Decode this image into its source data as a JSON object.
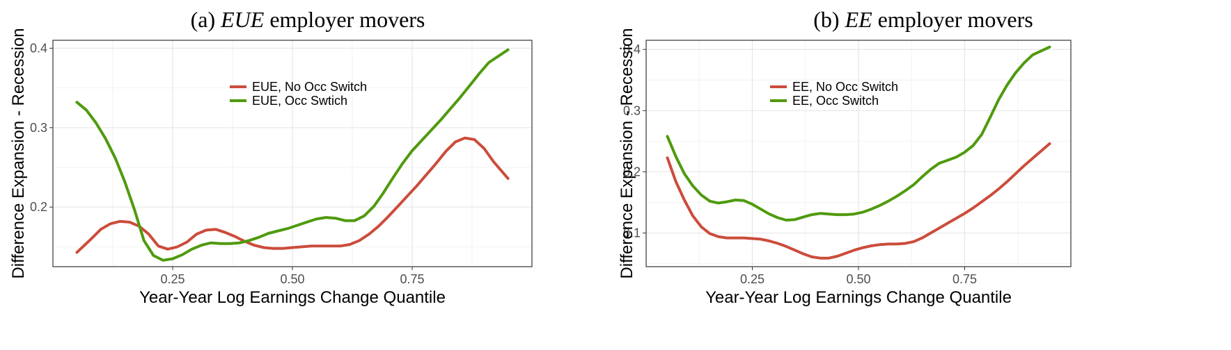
{
  "chart_data": [
    {
      "type": "line",
      "title_prefix": "(a)",
      "title_math": "EUE",
      "title_suffix": "employer movers",
      "xlabel": "Year-Year Log Earnings Change Quantile",
      "ylabel": "Difference Expansion - Recession",
      "xlim": [
        0.0,
        1.0
      ],
      "ylim": [
        0.125,
        0.41
      ],
      "xticks": [
        0.25,
        0.5,
        0.75
      ],
      "xtick_labels": [
        "0.25",
        "0.50",
        "0.75"
      ],
      "yticks": [
        0.2,
        0.3,
        0.4
      ],
      "ytick_labels": [
        "0.2",
        "0.3",
        "0.4"
      ],
      "grid": true,
      "legend_position": "top-center",
      "series": [
        {
          "name": "EUE, No Occ Switch",
          "color": "#cc4c3b",
          "x": [
            0.05,
            0.08,
            0.1,
            0.12,
            0.14,
            0.16,
            0.18,
            0.2,
            0.22,
            0.24,
            0.26,
            0.28,
            0.3,
            0.32,
            0.34,
            0.36,
            0.38,
            0.4,
            0.42,
            0.44,
            0.46,
            0.48,
            0.5,
            0.52,
            0.54,
            0.56,
            0.58,
            0.6,
            0.62,
            0.64,
            0.66,
            0.68,
            0.7,
            0.72,
            0.74,
            0.76,
            0.78,
            0.8,
            0.82,
            0.84,
            0.86,
            0.88,
            0.9,
            0.92,
            0.95
          ],
          "y": [
            0.143,
            0.16,
            0.172,
            0.179,
            0.182,
            0.181,
            0.176,
            0.166,
            0.151,
            0.147,
            0.15,
            0.156,
            0.166,
            0.171,
            0.172,
            0.168,
            0.163,
            0.157,
            0.152,
            0.149,
            0.148,
            0.148,
            0.149,
            0.15,
            0.151,
            0.151,
            0.151,
            0.151,
            0.153,
            0.158,
            0.166,
            0.176,
            0.188,
            0.201,
            0.214,
            0.227,
            0.241,
            0.255,
            0.27,
            0.282,
            0.287,
            0.285,
            0.274,
            0.257,
            0.236
          ]
        },
        {
          "name": "EUE, Occ Swtich",
          "color": "#4f9a0e",
          "x": [
            0.05,
            0.07,
            0.09,
            0.11,
            0.13,
            0.15,
            0.17,
            0.19,
            0.21,
            0.23,
            0.25,
            0.27,
            0.29,
            0.31,
            0.33,
            0.35,
            0.37,
            0.39,
            0.41,
            0.43,
            0.45,
            0.47,
            0.49,
            0.51,
            0.53,
            0.55,
            0.57,
            0.59,
            0.61,
            0.63,
            0.65,
            0.67,
            0.69,
            0.71,
            0.73,
            0.75,
            0.77,
            0.79,
            0.81,
            0.83,
            0.85,
            0.87,
            0.89,
            0.91,
            0.95
          ],
          "y": [
            0.332,
            0.322,
            0.306,
            0.286,
            0.262,
            0.232,
            0.197,
            0.158,
            0.139,
            0.133,
            0.135,
            0.14,
            0.147,
            0.152,
            0.155,
            0.154,
            0.154,
            0.155,
            0.158,
            0.162,
            0.167,
            0.17,
            0.173,
            0.177,
            0.181,
            0.185,
            0.187,
            0.186,
            0.183,
            0.183,
            0.189,
            0.201,
            0.218,
            0.237,
            0.255,
            0.271,
            0.284,
            0.297,
            0.31,
            0.324,
            0.338,
            0.353,
            0.368,
            0.382,
            0.398
          ]
        }
      ]
    },
    {
      "type": "line",
      "title_prefix": "(b)",
      "title_math": "EE",
      "title_suffix": "employer movers",
      "xlabel": "Year-Year Log Earnings Change Quantile",
      "ylabel": "Difference Expansion - Recession",
      "xlim": [
        0.0,
        1.0
      ],
      "ylim": [
        0.045,
        0.415
      ],
      "xticks": [
        0.25,
        0.5,
        0.75
      ],
      "xtick_labels": [
        "0.25",
        "0.50",
        "0.75"
      ],
      "yticks": [
        0.1,
        0.2,
        0.3,
        0.4
      ],
      "ytick_labels": [
        "0.1",
        "0.2",
        "0.3",
        "0.4"
      ],
      "grid": true,
      "legend_position": "top-center",
      "series": [
        {
          "name": "EE, No Occ Switch",
          "color": "#cc4c3b",
          "x": [
            0.05,
            0.07,
            0.09,
            0.11,
            0.13,
            0.15,
            0.17,
            0.19,
            0.21,
            0.23,
            0.25,
            0.27,
            0.29,
            0.31,
            0.33,
            0.35,
            0.37,
            0.39,
            0.41,
            0.43,
            0.45,
            0.47,
            0.49,
            0.51,
            0.53,
            0.55,
            0.57,
            0.59,
            0.61,
            0.63,
            0.65,
            0.67,
            0.69,
            0.71,
            0.73,
            0.75,
            0.77,
            0.79,
            0.81,
            0.83,
            0.85,
            0.87,
            0.89,
            0.91,
            0.95
          ],
          "y": [
            0.223,
            0.184,
            0.154,
            0.128,
            0.11,
            0.099,
            0.094,
            0.092,
            0.092,
            0.092,
            0.091,
            0.09,
            0.087,
            0.083,
            0.078,
            0.072,
            0.066,
            0.061,
            0.059,
            0.059,
            0.062,
            0.067,
            0.072,
            0.076,
            0.079,
            0.081,
            0.082,
            0.082,
            0.083,
            0.086,
            0.092,
            0.1,
            0.108,
            0.116,
            0.124,
            0.132,
            0.141,
            0.151,
            0.161,
            0.172,
            0.184,
            0.197,
            0.21,
            0.222,
            0.246
          ]
        },
        {
          "name": "EE, Occ Switch",
          "color": "#4f9a0e",
          "x": [
            0.05,
            0.07,
            0.09,
            0.11,
            0.13,
            0.15,
            0.17,
            0.19,
            0.21,
            0.23,
            0.25,
            0.27,
            0.29,
            0.31,
            0.33,
            0.35,
            0.37,
            0.39,
            0.41,
            0.43,
            0.45,
            0.47,
            0.49,
            0.51,
            0.53,
            0.55,
            0.57,
            0.59,
            0.61,
            0.63,
            0.65,
            0.67,
            0.69,
            0.71,
            0.73,
            0.75,
            0.77,
            0.79,
            0.81,
            0.83,
            0.85,
            0.87,
            0.89,
            0.91,
            0.95
          ],
          "y": [
            0.258,
            0.225,
            0.197,
            0.177,
            0.162,
            0.152,
            0.149,
            0.151,
            0.154,
            0.153,
            0.147,
            0.139,
            0.131,
            0.125,
            0.121,
            0.122,
            0.126,
            0.13,
            0.132,
            0.131,
            0.13,
            0.13,
            0.131,
            0.134,
            0.139,
            0.145,
            0.152,
            0.16,
            0.169,
            0.179,
            0.192,
            0.204,
            0.214,
            0.219,
            0.224,
            0.232,
            0.243,
            0.261,
            0.289,
            0.318,
            0.342,
            0.362,
            0.378,
            0.391,
            0.404
          ]
        }
      ]
    }
  ]
}
